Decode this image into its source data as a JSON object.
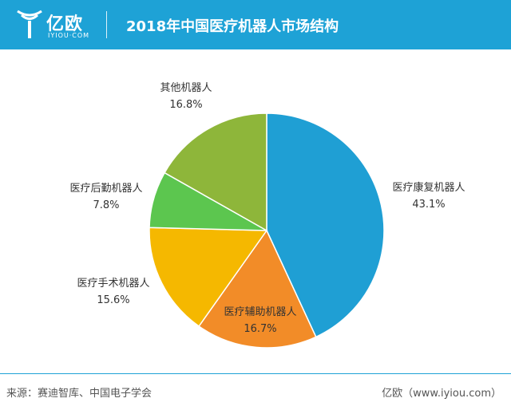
{
  "header": {
    "logo_text": "亿欧",
    "logo_sub": "IYIOU·COM",
    "title": "2018年中国医疗机器人市场结构"
  },
  "colors": {
    "header_bg": "#1ea2d6",
    "slice_colors": [
      "#1f9fd4",
      "#f28c28",
      "#f5b800",
      "#5cc64f",
      "#8eb63a"
    ]
  },
  "chart_data": {
    "type": "pie",
    "title": "2018年中国医疗机器人市场结构",
    "slices": [
      {
        "label": "医疗康复机器人",
        "value": 43.1,
        "value_text": "43.1%"
      },
      {
        "label": "医疗辅助机器人",
        "value": 16.7,
        "value_text": "16.7%"
      },
      {
        "label": "医疗手术机器人",
        "value": 15.6,
        "value_text": "15.6%"
      },
      {
        "label": "医疗后勤机器人",
        "value": 7.8,
        "value_text": "7.8%"
      },
      {
        "label": "其他机器人",
        "value": 16.8,
        "value_text": "16.8%"
      }
    ],
    "start_angle": "top, clockwise"
  },
  "footer": {
    "source": "来源：赛迪智库、中国电子学会",
    "site": "亿欧（www.iyiou.com）"
  }
}
